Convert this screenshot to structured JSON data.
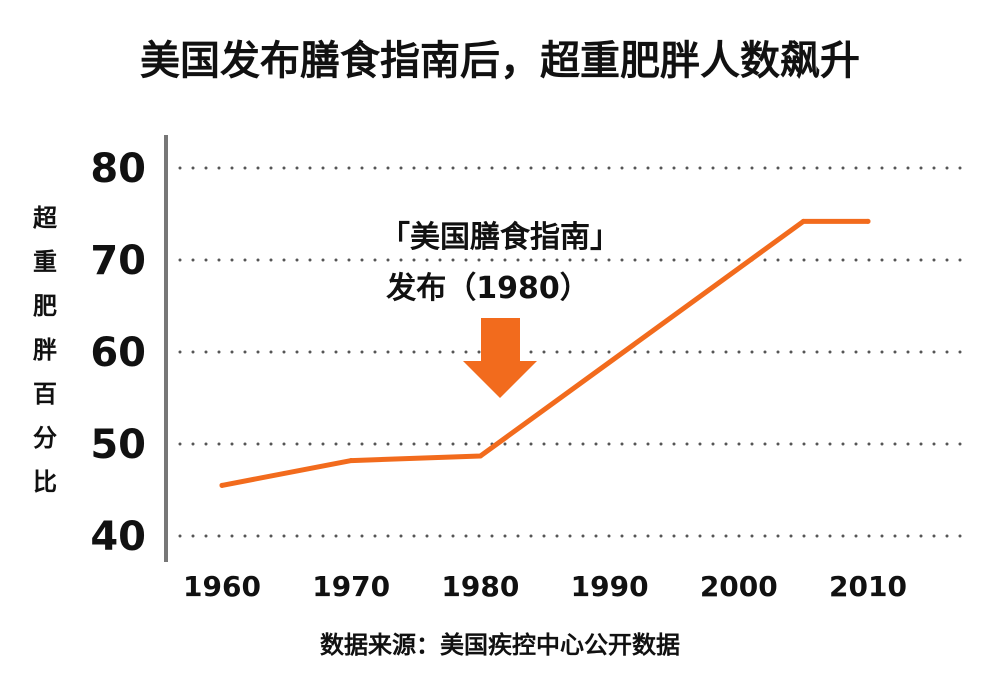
{
  "chart_data": {
    "type": "line",
    "title": "美国发布膳食指南后，超重肥胖人数飙升",
    "ylabel": "超重肥胖百分比",
    "xlabel": "",
    "x": [
      1960,
      1970,
      1980,
      2005,
      2010
    ],
    "series": [
      {
        "values": [
          45.5,
          48.2,
          48.7,
          74.2,
          74.2
        ]
      }
    ],
    "xticks": [
      "1960",
      "1970",
      "1980",
      "1990",
      "2000",
      "2010"
    ],
    "yticks": [
      "80",
      "70",
      "60",
      "50",
      "40"
    ],
    "ylim": [
      40,
      80
    ],
    "xlim": [
      1960,
      2010
    ],
    "grid": true,
    "grid_style": "dotted horizontal",
    "annotation": {
      "line1": "「美国膳食指南」",
      "line2": "发布（1980）",
      "x": 1980,
      "arrow": "down-arrow-icon"
    },
    "source": "数据来源：美国疾控中心公开数据",
    "colors": {
      "line": "#f26b1d",
      "arrow": "#f26b1d",
      "text": "#111111",
      "grid": "#555555",
      "axis": "#777777"
    }
  }
}
